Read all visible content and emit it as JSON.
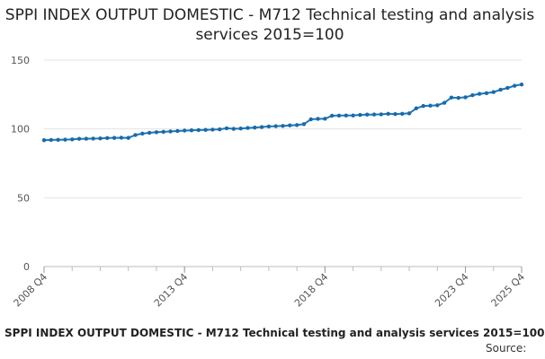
{
  "chart_data": {
    "type": "line",
    "title": "SPPI INDEX OUTPUT DOMESTIC - M712 Technical testing and analysis services 2015=100",
    "xlabel": "",
    "ylabel": "",
    "ylim": [
      0,
      150
    ],
    "yticks": [
      "0",
      "50",
      "100",
      "150"
    ],
    "xtick_labels": [
      "2008 Q4",
      "2013 Q4",
      "2018 Q4",
      "2023 Q4",
      "2025 Q4"
    ],
    "grid": true,
    "legend": "none",
    "line_color": "#1f77b4",
    "point_color": "#1a6aa8",
    "x_start": "2008 Q4",
    "x_end": "2025 Q4",
    "values": [
      91.8,
      92.0,
      92.1,
      92.2,
      92.4,
      92.8,
      92.9,
      93.0,
      93.1,
      93.4,
      93.5,
      93.6,
      93.5,
      95.6,
      96.6,
      97.2,
      97.6,
      97.9,
      98.2,
      98.5,
      98.8,
      99.0,
      99.2,
      99.3,
      99.5,
      99.7,
      100.5,
      100.1,
      100.3,
      100.7,
      101.0,
      101.4,
      101.8,
      102.0,
      102.2,
      102.6,
      102.8,
      103.5,
      107.0,
      107.3,
      107.4,
      109.6,
      109.7,
      109.8,
      109.8,
      110.2,
      110.4,
      110.5,
      110.6,
      111.0,
      110.8,
      111.0,
      111.3,
      115.0,
      116.7,
      116.9,
      117.2,
      119.0,
      122.8,
      122.6,
      123.0,
      124.5,
      125.5,
      126.0,
      126.8,
      128.5,
      129.8,
      131.4,
      132.3
    ]
  },
  "footer": {
    "title": "SPPI INDEX OUTPUT DOMESTIC - M712 Technical testing and analysis services 2015=100",
    "source": "Source: "
  }
}
